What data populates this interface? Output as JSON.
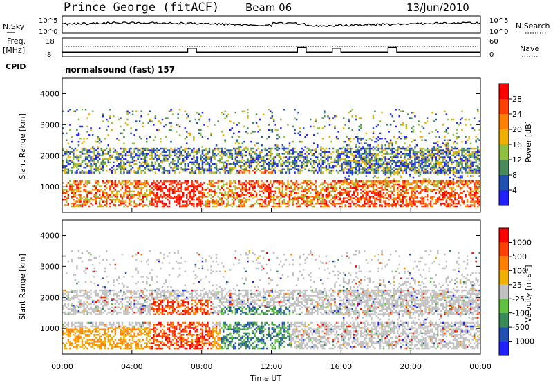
{
  "header": {
    "site": "Prince George (fitACF)",
    "beam": "Beam 06",
    "date": "13/Jun/2010"
  },
  "left_labels": {
    "nsky": "N.Sky",
    "freq_1": "Freq.",
    "freq_2": "[MHz]",
    "cpid": "CPID"
  },
  "right_labels": {
    "nsearch": "N.Search",
    "nave": "Nave"
  },
  "cpid_text": "normalsound (fast) 157",
  "noise_axis": {
    "left_ticks": [
      "10^5",
      "10^0"
    ],
    "right_ticks": [
      "10^5",
      "10^0"
    ]
  },
  "freq_axis": {
    "left_ticks": [
      "18",
      "8"
    ],
    "right_ticks": [
      "60",
      "0"
    ]
  },
  "power_colorbar": {
    "label": "Power [dB]",
    "ticks": [
      "28",
      "24",
      "20",
      "16",
      "12",
      "8",
      "4"
    ],
    "colors": [
      "#2020ff",
      "#2050b0",
      "#4a8a5a",
      "#90c040",
      "#f0b000",
      "#ff8000",
      "#ff4000",
      "#ff0000"
    ]
  },
  "velocity_colorbar": {
    "label": "Velocity [m s",
    "label_sup": "-1",
    "label_end": "]",
    "ticks": [
      "1000",
      "500",
      "100",
      "25",
      "-25",
      "-100",
      "-500",
      "-1000"
    ],
    "colors": [
      "#2020ff",
      "#2050b0",
      "#3a8a5a",
      "#60c040",
      "#c0c0c0",
      "#f0b000",
      "#ff8000",
      "#ff4000",
      "#ff0000"
    ]
  },
  "chart_data": {
    "type": "heatmap",
    "panels": [
      {
        "name": "power",
        "ylabel": "Slant Range [km]",
        "yticks": [
          1000,
          2000,
          3000,
          4000
        ]
      },
      {
        "name": "velocity",
        "ylabel": "Slant Range [km]",
        "yticks": [
          1000,
          2000,
          3000,
          4000
        ]
      }
    ],
    "ylim": [
      180,
      4500
    ],
    "xlabel": "Time UT",
    "xticks": [
      "00:00",
      "04:00",
      "08:00",
      "12:00",
      "16:00",
      "20:00",
      "00:00"
    ],
    "xlim_hours": [
      0,
      24
    ],
    "echo_bands_km": [
      {
        "from_hour": 0,
        "to_hour": 24,
        "range_low": 300,
        "range_high": 1200
      },
      {
        "from_hour": 0,
        "to_hour": 24,
        "range_low": 1400,
        "range_high": 2200
      }
    ],
    "freq_mhz_baseline": 10.5,
    "freq_mhz_steps": [
      {
        "hour": 7.2,
        "mhz": 12.5
      },
      {
        "hour": 13.5,
        "mhz": 13
      },
      {
        "hour": 15.5,
        "mhz": 12.5
      },
      {
        "hour": 18.7,
        "mhz": 13
      }
    ]
  }
}
